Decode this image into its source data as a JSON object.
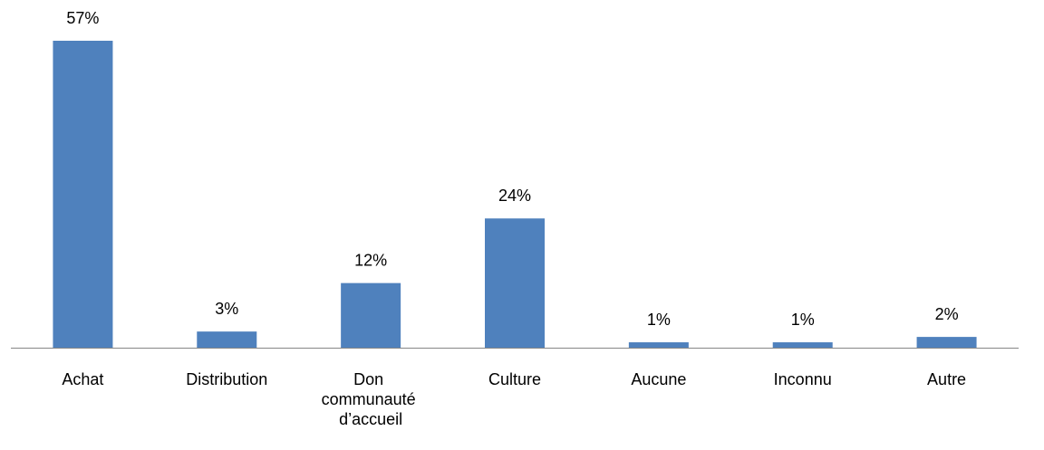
{
  "chart_data": {
    "type": "bar",
    "categories": [
      "Achat",
      "Distribution",
      "Don communauté d’accueil",
      "Culture",
      "Aucune",
      "Inconnu",
      "Autre"
    ],
    "values": [
      57,
      3,
      12,
      24,
      1,
      1,
      2
    ],
    "value_labels": [
      "57%",
      "3%",
      "12%",
      "24%",
      "1%",
      "1%",
      "2%"
    ],
    "color": "#4f81bd"
  }
}
